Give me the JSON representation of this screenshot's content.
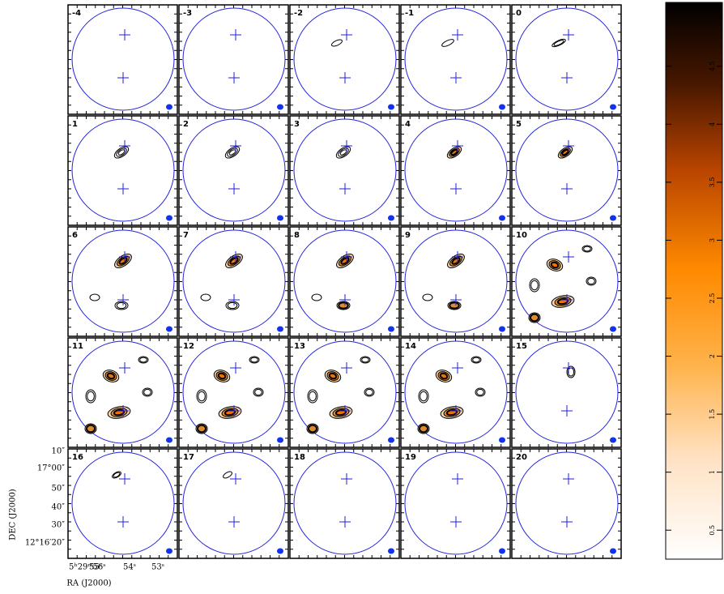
{
  "panels": [
    {
      "label": "-4"
    },
    {
      "label": "-3"
    },
    {
      "label": "-2"
    },
    {
      "label": "-1"
    },
    {
      "label": "0"
    },
    {
      "label": "1"
    },
    {
      "label": "2"
    },
    {
      "label": "3"
    },
    {
      "label": "4"
    },
    {
      "label": "5"
    },
    {
      "label": "6"
    },
    {
      "label": "7"
    },
    {
      "label": "8"
    },
    {
      "label": "9"
    },
    {
      "label": "10"
    },
    {
      "label": "11"
    },
    {
      "label": "12"
    },
    {
      "label": "13"
    },
    {
      "label": "14"
    },
    {
      "label": "15"
    },
    {
      "label": "16"
    },
    {
      "label": "17"
    },
    {
      "label": "18"
    },
    {
      "label": "19"
    },
    {
      "label": "20"
    }
  ],
  "ra_axis": {
    "label": "RA (J2000)",
    "ticks": [
      "5ʰ29ᵐ56ˢ",
      "55ˢ",
      "54ˢ",
      "53ˢ"
    ]
  },
  "dec_axis": {
    "label": "DEC (J2000)",
    "ticks": [
      "10″",
      "17°00″",
      "50″",
      "40″",
      "30″",
      "12°16′20″"
    ]
  },
  "colorbar": {
    "lim": [
      0.25,
      5.05
    ],
    "ticks": [
      0.5,
      1,
      1.5,
      2,
      2.5,
      3,
      3.5,
      4,
      4.5,
      5
    ]
  }
}
